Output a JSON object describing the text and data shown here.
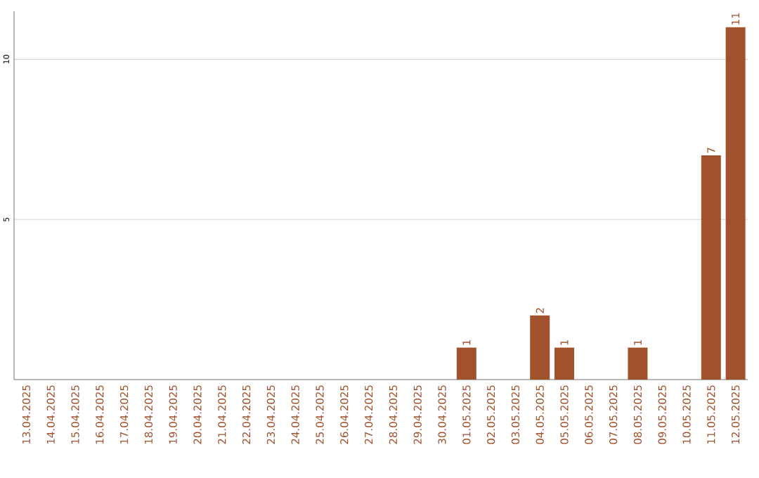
{
  "chart_data": {
    "type": "bar",
    "categories": [
      "13.04.2025",
      "14.04.2025",
      "15.04.2025",
      "16.04.2025",
      "17.04.2025",
      "18.04.2025",
      "19.04.2025",
      "20.04.2025",
      "21.04.2025",
      "22.04.2025",
      "23.04.2025",
      "24.04.2025",
      "25.04.2025",
      "26.04.2025",
      "27.04.2025",
      "28.04.2025",
      "29.04.2025",
      "30.04.2025",
      "01.05.2025",
      "02.05.2025",
      "03.05.2025",
      "04.05.2025",
      "05.05.2025",
      "06.05.2025",
      "07.05.2025",
      "08.05.2025",
      "09.05.2025",
      "10.05.2025",
      "11.05.2025",
      "12.05.2025"
    ],
    "values": [
      0,
      0,
      0,
      0,
      0,
      0,
      0,
      0,
      0,
      0,
      0,
      0,
      0,
      0,
      0,
      0,
      0,
      0,
      1,
      0,
      0,
      2,
      1,
      0,
      0,
      1,
      0,
      0,
      7,
      11
    ],
    "value_labels": [
      null,
      null,
      null,
      null,
      null,
      null,
      null,
      null,
      null,
      null,
      null,
      null,
      null,
      null,
      null,
      null,
      null,
      null,
      "1",
      null,
      null,
      "2",
      "1",
      null,
      null,
      "1",
      null,
      null,
      "7",
      "11"
    ],
    "color": "#a0522d",
    "ylim": [
      0,
      11.5
    ],
    "yticks": [
      5,
      10
    ],
    "grid": "y"
  }
}
